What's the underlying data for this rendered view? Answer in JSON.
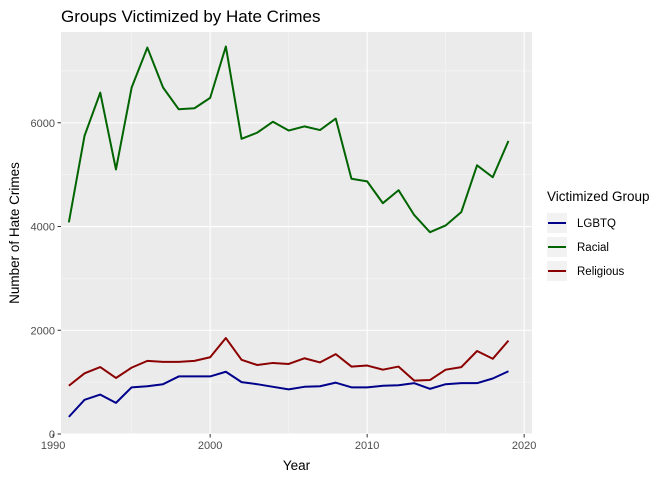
{
  "chart_data": {
    "type": "line",
    "title": "Groups Victimized by Hate Crimes",
    "xlabel": "Year",
    "ylabel": "Number of Hate Crimes",
    "xlim": [
      1990.5,
      2020.5
    ],
    "ylim": [
      0,
      7750
    ],
    "x_ticks": [
      1990,
      2000,
      2010,
      2020
    ],
    "y_ticks": [
      0,
      2000,
      4000,
      6000
    ],
    "grid": true,
    "legend_title": "Victimized Group",
    "legend_position": "right",
    "x": [
      1991,
      1992,
      1993,
      1994,
      1995,
      1996,
      1997,
      1998,
      1999,
      2000,
      2001,
      2002,
      2003,
      2004,
      2005,
      2006,
      2007,
      2008,
      2009,
      2010,
      2011,
      2012,
      2013,
      2014,
      2015,
      2016,
      2017,
      2018,
      2019
    ],
    "series": [
      {
        "name": "LGBTQ",
        "color": "#00008b",
        "values": [
          330,
          660,
          760,
          600,
          900,
          920,
          960,
          1110,
          1110,
          1110,
          1200,
          1000,
          960,
          910,
          860,
          910,
          920,
          990,
          900,
          900,
          930,
          940,
          980,
          870,
          960,
          980,
          980,
          1070,
          1210
        ]
      },
      {
        "name": "Racial",
        "color": "#006400",
        "values": [
          4080,
          5750,
          6580,
          5100,
          6680,
          7450,
          6680,
          6260,
          6280,
          6480,
          7470,
          5690,
          5810,
          6020,
          5850,
          5930,
          5860,
          6080,
          4920,
          4870,
          4450,
          4700,
          4220,
          3890,
          4020,
          4280,
          5180,
          4950,
          5650
        ]
      },
      {
        "name": "Religious",
        "color": "#8b0000",
        "values": [
          930,
          1170,
          1290,
          1080,
          1280,
          1410,
          1390,
          1390,
          1410,
          1480,
          1850,
          1430,
          1330,
          1370,
          1350,
          1460,
          1380,
          1540,
          1300,
          1320,
          1240,
          1300,
          1030,
          1040,
          1240,
          1290,
          1600,
          1450,
          1800
        ]
      }
    ]
  }
}
